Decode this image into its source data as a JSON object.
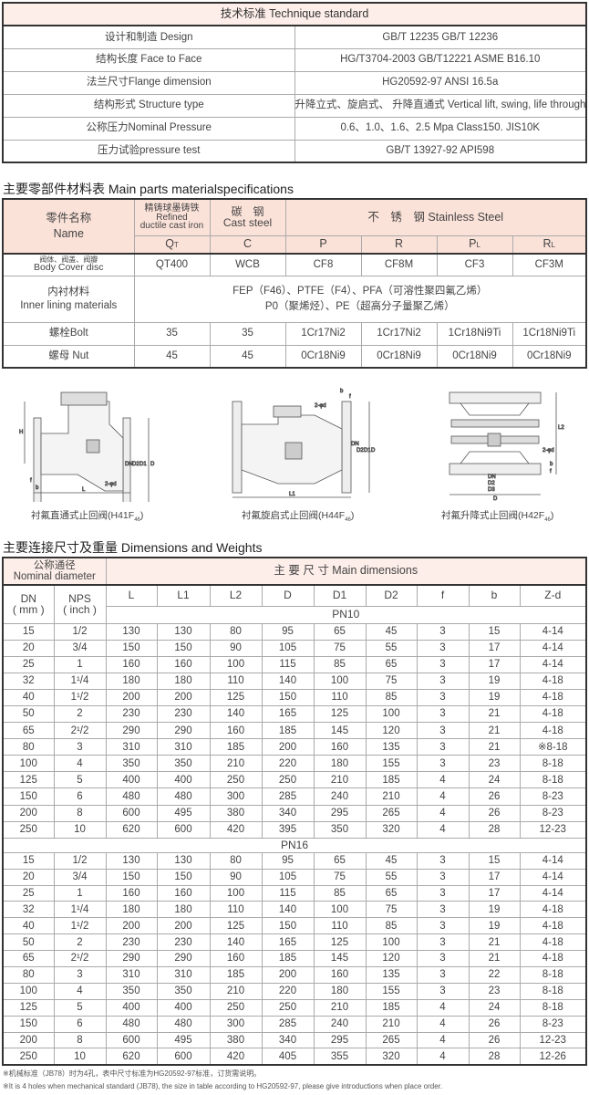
{
  "technique_standard": {
    "title": "技术标准 Technique standard",
    "rows": [
      [
        "设计和制造 Design",
        "GB/T 12235 GB/T 12236"
      ],
      [
        "结构长度 Face to Face",
        "HG/T3704-2003 GB/T12221 ASME B16.10"
      ],
      [
        "法兰尺寸Flange dimension",
        "HG20592-97  ANSI 16.5a"
      ],
      [
        "结构形式 Structure type",
        "升降立式、旋启式、 升降直通式 Vertical lift, swing, life through way type"
      ],
      [
        "公称压力Nominal Pressure",
        "0.6、1.0、1.6、2.5 Mpa Class150. JIS10K"
      ],
      [
        "压力试验pressure test",
        "GB/T 13927-92   API598"
      ]
    ]
  },
  "materials": {
    "title": "主要零部件材料表 Main parts materialspecifications",
    "name_header_cn": "零件名称",
    "name_header_en": "Name",
    "group_ductile_cn": "精铸球墨铸铁",
    "group_ductile_en1": "Refined",
    "group_ductile_en2": "ductile cast iron",
    "group_cast_cn": "碳　钢",
    "group_cast_en": "Cast steel",
    "group_stainless": "不　锈　钢 Stainless Steel",
    "codes": [
      "QT",
      "C",
      "P",
      "R",
      "PL",
      "RL"
    ],
    "body_label_cn": "阀体、阀盖、阀瓣",
    "body_label_en": "Body Cover disc",
    "body_values": [
      "QT400",
      "WCB",
      "CF8",
      "CF8M",
      "CF3",
      "CF3M"
    ],
    "lining_label_cn": "内衬材料",
    "lining_label_en": "Inner lining materials",
    "lining_line1": "FEP（F46）、PTFE（F4）、PFA（可溶性聚四氟乙烯）",
    "lining_line2": "P0（聚烯烃）、PE（超高分子量聚乙烯）",
    "bolt_label": "螺栓Bolt",
    "bolt_values": [
      "35",
      "35",
      "1Cr17Ni2",
      "1Cr17Ni2",
      "1Cr18Ni9Ti",
      "1Cr18Ni9Ti"
    ],
    "nut_label": "螺母 Nut",
    "nut_values": [
      "45",
      "45",
      "0Cr18Ni9",
      "0Cr18Ni9",
      "0Cr18Ni9",
      "0Cr18Ni9"
    ]
  },
  "diagrams": [
    {
      "caption": "衬氟直通式止回阀(H41F",
      "sub": "46",
      "close": ")",
      "labels": [
        "H",
        "D",
        "D1",
        "D2",
        "DN",
        "L",
        "b",
        "f",
        "2-φd"
      ]
    },
    {
      "caption": "衬氟旋启式止回阀(H44F",
      "sub": "46",
      "close": ")",
      "labels": [
        "b",
        "f",
        "2-φd",
        "D",
        "D1",
        "D2",
        "DN",
        "L1"
      ]
    },
    {
      "caption": "衬氟升降式止回阀(H42F",
      "sub": "46",
      "close": ")",
      "labels": [
        "L2",
        "2-φd",
        "b",
        "f",
        "DN",
        "D2",
        "D3",
        "D"
      ]
    }
  ],
  "dimensions": {
    "title": "主要连接尺寸及重量 Dimensions and Weights",
    "nominal_cn": "公称通径",
    "nominal_en": "Nominal diameter",
    "main_dims": "主 要 尺 寸  Main dimensions",
    "dn_header": "DN",
    "dn_unit": "( mm )",
    "nps_header": "NPS",
    "nps_unit": "( inch )",
    "columns": [
      "L",
      "L1",
      "L2",
      "D",
      "D1",
      "D2",
      "f",
      "b",
      "Z-d"
    ],
    "groups": [
      {
        "label": "PN10",
        "rows": [
          [
            "15",
            "1/2",
            "130",
            "130",
            "80",
            "95",
            "65",
            "45",
            "3",
            "15",
            "4-14"
          ],
          [
            "20",
            "3/4",
            "150",
            "150",
            "90",
            "105",
            "75",
            "55",
            "3",
            "17",
            "4-14"
          ],
          [
            "25",
            "1",
            "160",
            "160",
            "100",
            "115",
            "85",
            "65",
            "3",
            "17",
            "4-14"
          ],
          [
            "32",
            "1¹/4",
            "180",
            "180",
            "110",
            "140",
            "100",
            "75",
            "3",
            "19",
            "4-18"
          ],
          [
            "40",
            "1¹/2",
            "200",
            "200",
            "125",
            "150",
            "110",
            "85",
            "3",
            "19",
            "4-18"
          ],
          [
            "50",
            "2",
            "230",
            "230",
            "140",
            "165",
            "125",
            "100",
            "3",
            "21",
            "4-18"
          ],
          [
            "65",
            "2¹/2",
            "290",
            "290",
            "160",
            "185",
            "145",
            "120",
            "3",
            "21",
            "4-18"
          ],
          [
            "80",
            "3",
            "310",
            "310",
            "185",
            "200",
            "160",
            "135",
            "3",
            "21",
            "※8-18"
          ],
          [
            "100",
            "4",
            "350",
            "350",
            "210",
            "220",
            "180",
            "155",
            "3",
            "23",
            "8-18"
          ],
          [
            "125",
            "5",
            "400",
            "400",
            "250",
            "250",
            "210",
            "185",
            "4",
            "24",
            "8-18"
          ],
          [
            "150",
            "6",
            "480",
            "480",
            "300",
            "285",
            "240",
            "210",
            "4",
            "26",
            "8-23"
          ],
          [
            "200",
            "8",
            "600",
            "495",
            "380",
            "340",
            "295",
            "265",
            "4",
            "26",
            "8-23"
          ],
          [
            "250",
            "10",
            "620",
            "600",
            "420",
            "395",
            "350",
            "320",
            "4",
            "28",
            "12-23"
          ]
        ]
      },
      {
        "label": "PN16",
        "rows": [
          [
            "15",
            "1/2",
            "130",
            "130",
            "80",
            "95",
            "65",
            "45",
            "3",
            "15",
            "4-14"
          ],
          [
            "20",
            "3/4",
            "150",
            "150",
            "90",
            "105",
            "75",
            "55",
            "3",
            "17",
            "4-14"
          ],
          [
            "25",
            "1",
            "160",
            "160",
            "100",
            "115",
            "85",
            "65",
            "3",
            "17",
            "4-14"
          ],
          [
            "32",
            "1¹/4",
            "180",
            "180",
            "110",
            "140",
            "100",
            "75",
            "3",
            "19",
            "4-18"
          ],
          [
            "40",
            "1¹/2",
            "200",
            "200",
            "125",
            "150",
            "110",
            "85",
            "3",
            "19",
            "4-18"
          ],
          [
            "50",
            "2",
            "230",
            "230",
            "140",
            "165",
            "125",
            "100",
            "3",
            "21",
            "4-18"
          ],
          [
            "65",
            "2¹/2",
            "290",
            "290",
            "160",
            "185",
            "145",
            "120",
            "3",
            "21",
            "4-18"
          ],
          [
            "80",
            "3",
            "310",
            "310",
            "185",
            "200",
            "160",
            "135",
            "3",
            "22",
            "8-18"
          ],
          [
            "100",
            "4",
            "350",
            "350",
            "210",
            "220",
            "180",
            "155",
            "3",
            "23",
            "8-18"
          ],
          [
            "125",
            "5",
            "400",
            "400",
            "250",
            "250",
            "210",
            "185",
            "4",
            "24",
            "8-18"
          ],
          [
            "150",
            "6",
            "480",
            "480",
            "300",
            "285",
            "240",
            "210",
            "4",
            "26",
            "8-23"
          ],
          [
            "200",
            "8",
            "600",
            "495",
            "380",
            "340",
            "295",
            "265",
            "4",
            "26",
            "12-23"
          ],
          [
            "250",
            "10",
            "620",
            "600",
            "420",
            "405",
            "355",
            "320",
            "4",
            "28",
            "12-26"
          ]
        ]
      }
    ],
    "note_cn": "※机械标准（JB78）时为4孔，表中尺寸标准为HG20592-97标准，订货需说明。",
    "note_en": "※It is 4 holes when mechanical standard (JB78), the size in table according to HG20592-97, please give introductions when place order."
  }
}
